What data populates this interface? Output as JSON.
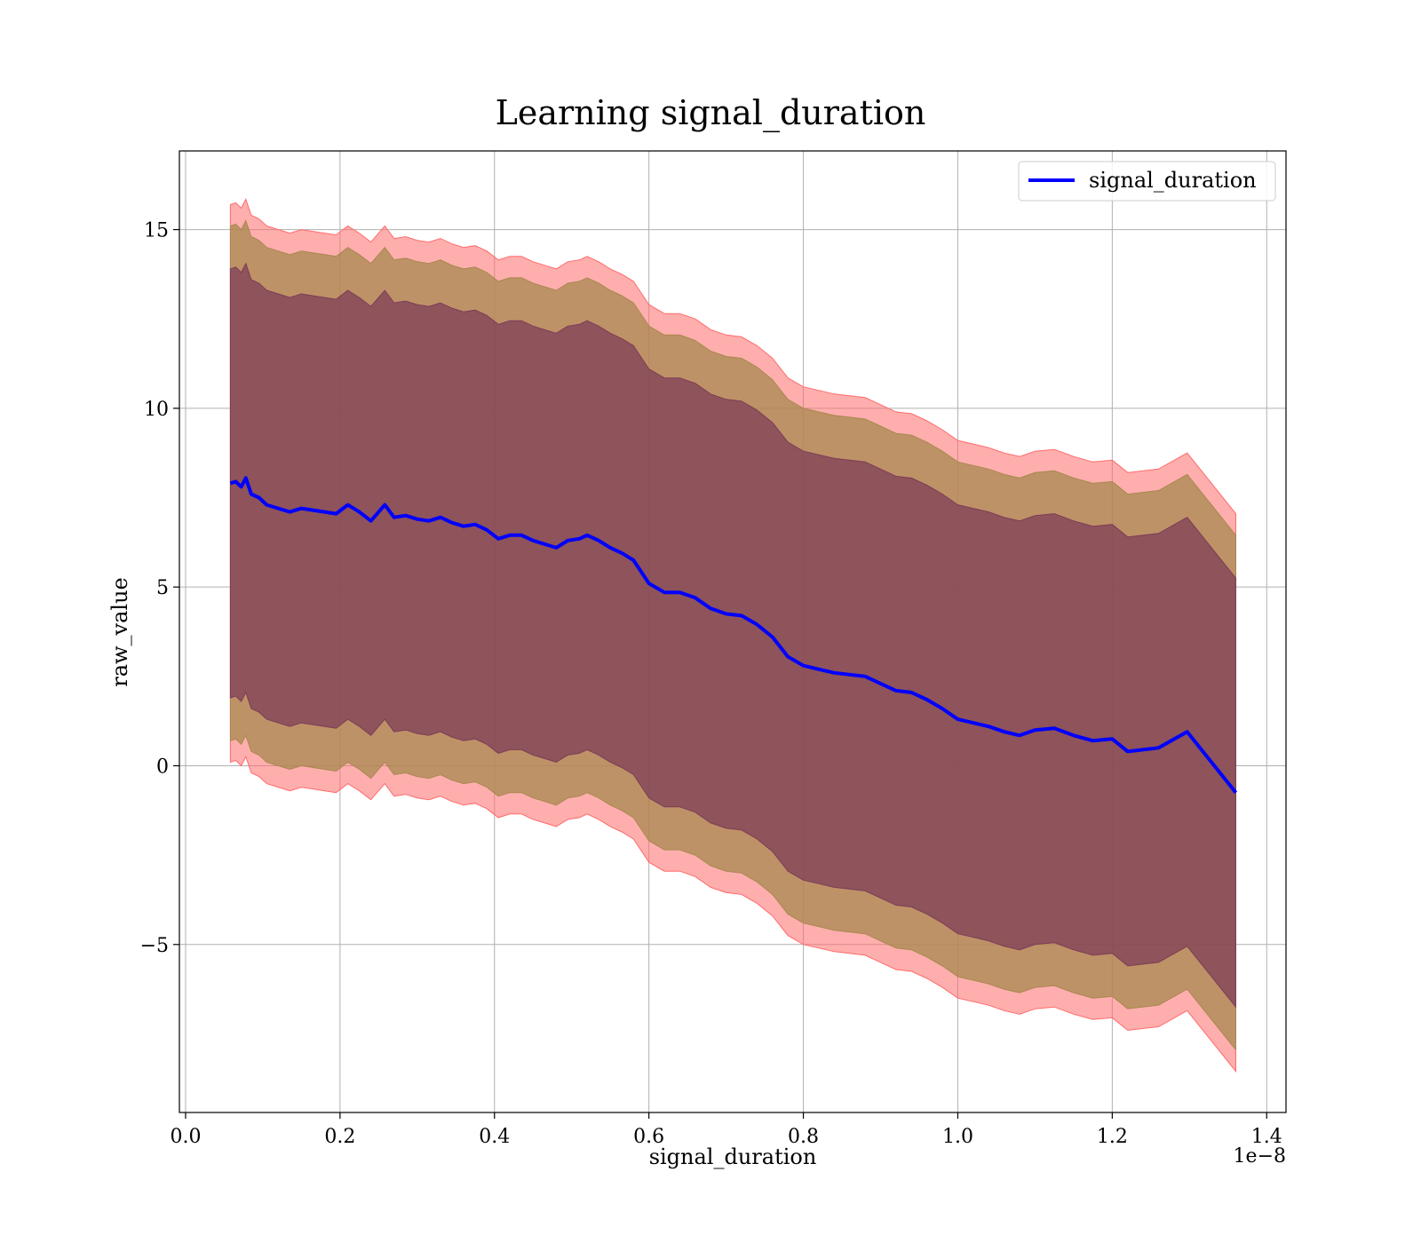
{
  "chart_data": {
    "type": "line",
    "title": "Learning signal_duration",
    "xlabel": "signal_duration",
    "ylabel": "raw_value",
    "x_offset_label": "1e−8",
    "xlim": [
      -0.008,
      1.425
    ],
    "ylim": [
      -9.7,
      17.2
    ],
    "x_ticks": [
      0.0,
      0.2,
      0.4,
      0.6,
      0.8,
      1.0,
      1.2,
      1.4
    ],
    "x_tick_labels": [
      "0.0",
      "0.2",
      "0.4",
      "0.6",
      "0.8",
      "1.0",
      "1.2",
      "1.4"
    ],
    "y_ticks": [
      -5,
      0,
      5,
      10,
      15
    ],
    "y_tick_labels": [
      "−5",
      "0",
      "5",
      "10",
      "15"
    ],
    "grid": true,
    "legend": {
      "position": "upper right",
      "entries": [
        "signal_duration"
      ]
    },
    "colors": {
      "line": "#0000ff",
      "outer_band": "#ff6b6b",
      "middle_band": "#a8884f",
      "inner_band": "#7e3d57"
    },
    "series": [
      {
        "name": "signal_duration",
        "x": [
          0.058,
          0.065,
          0.072,
          0.078,
          0.085,
          0.095,
          0.105,
          0.12,
          0.135,
          0.15,
          0.165,
          0.18,
          0.195,
          0.21,
          0.225,
          0.24,
          0.258,
          0.27,
          0.285,
          0.3,
          0.315,
          0.33,
          0.345,
          0.36,
          0.375,
          0.39,
          0.405,
          0.42,
          0.435,
          0.45,
          0.465,
          0.48,
          0.495,
          0.51,
          0.52,
          0.535,
          0.55,
          0.565,
          0.58,
          0.6,
          0.62,
          0.64,
          0.66,
          0.68,
          0.7,
          0.72,
          0.74,
          0.76,
          0.78,
          0.8,
          0.82,
          0.84,
          0.86,
          0.88,
          0.9,
          0.92,
          0.94,
          0.96,
          0.98,
          1.0,
          1.02,
          1.04,
          1.06,
          1.08,
          1.1,
          1.125,
          1.15,
          1.175,
          1.2,
          1.22,
          1.26,
          1.297,
          1.36
        ],
        "y": [
          7.9,
          7.95,
          7.8,
          8.05,
          7.6,
          7.5,
          7.3,
          7.2,
          7.1,
          7.2,
          7.15,
          7.1,
          7.05,
          7.3,
          7.1,
          6.85,
          7.3,
          6.95,
          7.0,
          6.9,
          6.85,
          6.95,
          6.8,
          6.7,
          6.75,
          6.6,
          6.35,
          6.45,
          6.45,
          6.3,
          6.2,
          6.1,
          6.3,
          6.35,
          6.45,
          6.3,
          6.1,
          5.95,
          5.75,
          5.1,
          4.85,
          4.85,
          4.7,
          4.4,
          4.25,
          4.2,
          3.95,
          3.6,
          3.05,
          2.8,
          2.7,
          2.6,
          2.55,
          2.5,
          2.3,
          2.1,
          2.05,
          1.85,
          1.6,
          1.3,
          1.2,
          1.1,
          0.95,
          0.85,
          1.0,
          1.05,
          0.85,
          0.7,
          0.75,
          0.4,
          0.5,
          0.95,
          -0.75
        ]
      }
    ],
    "bands": [
      {
        "name": "outer",
        "half_width": 7.8
      },
      {
        "name": "middle",
        "half_width": 7.2
      },
      {
        "name": "inner",
        "half_width": 6.0
      }
    ]
  }
}
